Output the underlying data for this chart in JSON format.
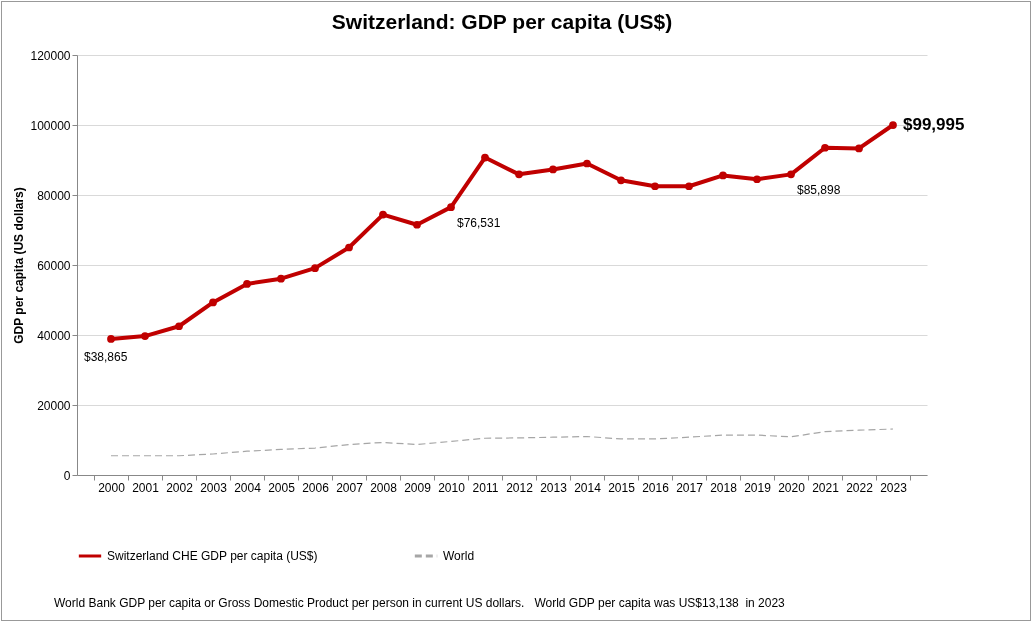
{
  "chart_data": {
    "type": "line",
    "title": "Switzerland: GDP per capita (US$)",
    "ylabel": "GDP per capita (US dollars)",
    "categories": [
      "2000",
      "2001",
      "2002",
      "2003",
      "2004",
      "2005",
      "2006",
      "2007",
      "2008",
      "2009",
      "2010",
      "2011",
      "2012",
      "2013",
      "2014",
      "2015",
      "2016",
      "2017",
      "2018",
      "2019",
      "2020",
      "2021",
      "2022",
      "2023"
    ],
    "series": [
      {
        "name": "Switzerland CHE GDP per capita (US$)",
        "color": "#c00000",
        "marker": "circle",
        "line_style": "solid",
        "values": [
          38865,
          39700,
          42500,
          49300,
          54600,
          56100,
          59100,
          65000,
          74400,
          71500,
          76531,
          90700,
          85900,
          87300,
          89000,
          84200,
          82500,
          82500,
          85600,
          84500,
          85898,
          93500,
          93300,
          99995
        ],
        "value_labels": [
          "$38,865",
          null,
          null,
          null,
          null,
          null,
          null,
          null,
          null,
          null,
          "$76,531",
          null,
          null,
          null,
          null,
          null,
          null,
          null,
          null,
          null,
          "$85,898",
          null,
          null,
          "$99,995"
        ]
      },
      {
        "name": "World",
        "color": "#a6a6a6",
        "marker": "none",
        "line_style": "dashed",
        "values": [
          5500,
          5500,
          5500,
          6000,
          6800,
          7300,
          7700,
          8700,
          9300,
          8700,
          9600,
          10500,
          10600,
          10800,
          11000,
          10300,
          10300,
          10800,
          11400,
          11400,
          10900,
          12400,
          12800,
          13138
        ]
      }
    ],
    "ylim": [
      0,
      120000
    ],
    "yticks": [
      0,
      20000,
      40000,
      60000,
      80000,
      100000,
      120000
    ],
    "grid": "y",
    "legend": "bottom",
    "annotations": [
      "World Bank GDP per capita or Gross Domestic Product per person in current US dollars.   World GDP per capita was US$13,138  in 2023"
    ]
  }
}
